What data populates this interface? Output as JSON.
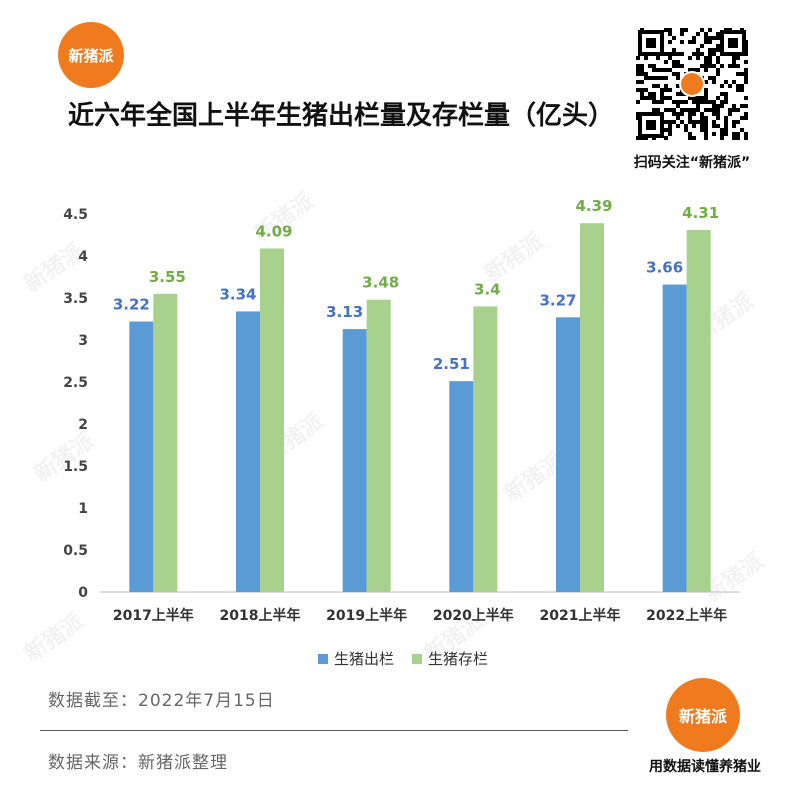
{
  "brand": {
    "name": "新猪派",
    "accent": "#f07b1f"
  },
  "title": "近六年全国上半年生猪出栏量及存栏量（亿头）",
  "qr_caption": "扫码关注“新猪派”",
  "slogan": "用数据读懂养猪业",
  "footnotes": {
    "date": "数据截至：2022年7月15日",
    "source": "数据来源：新猪派整理"
  },
  "chart_data": {
    "type": "bar",
    "title": "近六年全国上半年生猪出栏量及存栏量（亿头）",
    "categories": [
      "2017上半年",
      "2018上半年",
      "2019上半年",
      "2020上半年",
      "2021上半年",
      "2022上半年"
    ],
    "series": [
      {
        "name": "生猪出栏",
        "color": "#5b9bd5",
        "label_color": "#4472c4",
        "values": [
          3.22,
          3.34,
          3.13,
          2.51,
          3.27,
          3.66
        ]
      },
      {
        "name": "生猪存栏",
        "color": "#a9d18e",
        "label_color": "#70ad47",
        "values": [
          3.55,
          4.09,
          3.48,
          3.4,
          4.39,
          4.31
        ]
      }
    ],
    "yticks": [
      "0",
      "0.5",
      "1",
      "1.5",
      "2",
      "2.5",
      "3",
      "3.5",
      "4",
      "4.5"
    ],
    "ylim": [
      0,
      4.5
    ],
    "grid": false,
    "legend": "bottom"
  }
}
